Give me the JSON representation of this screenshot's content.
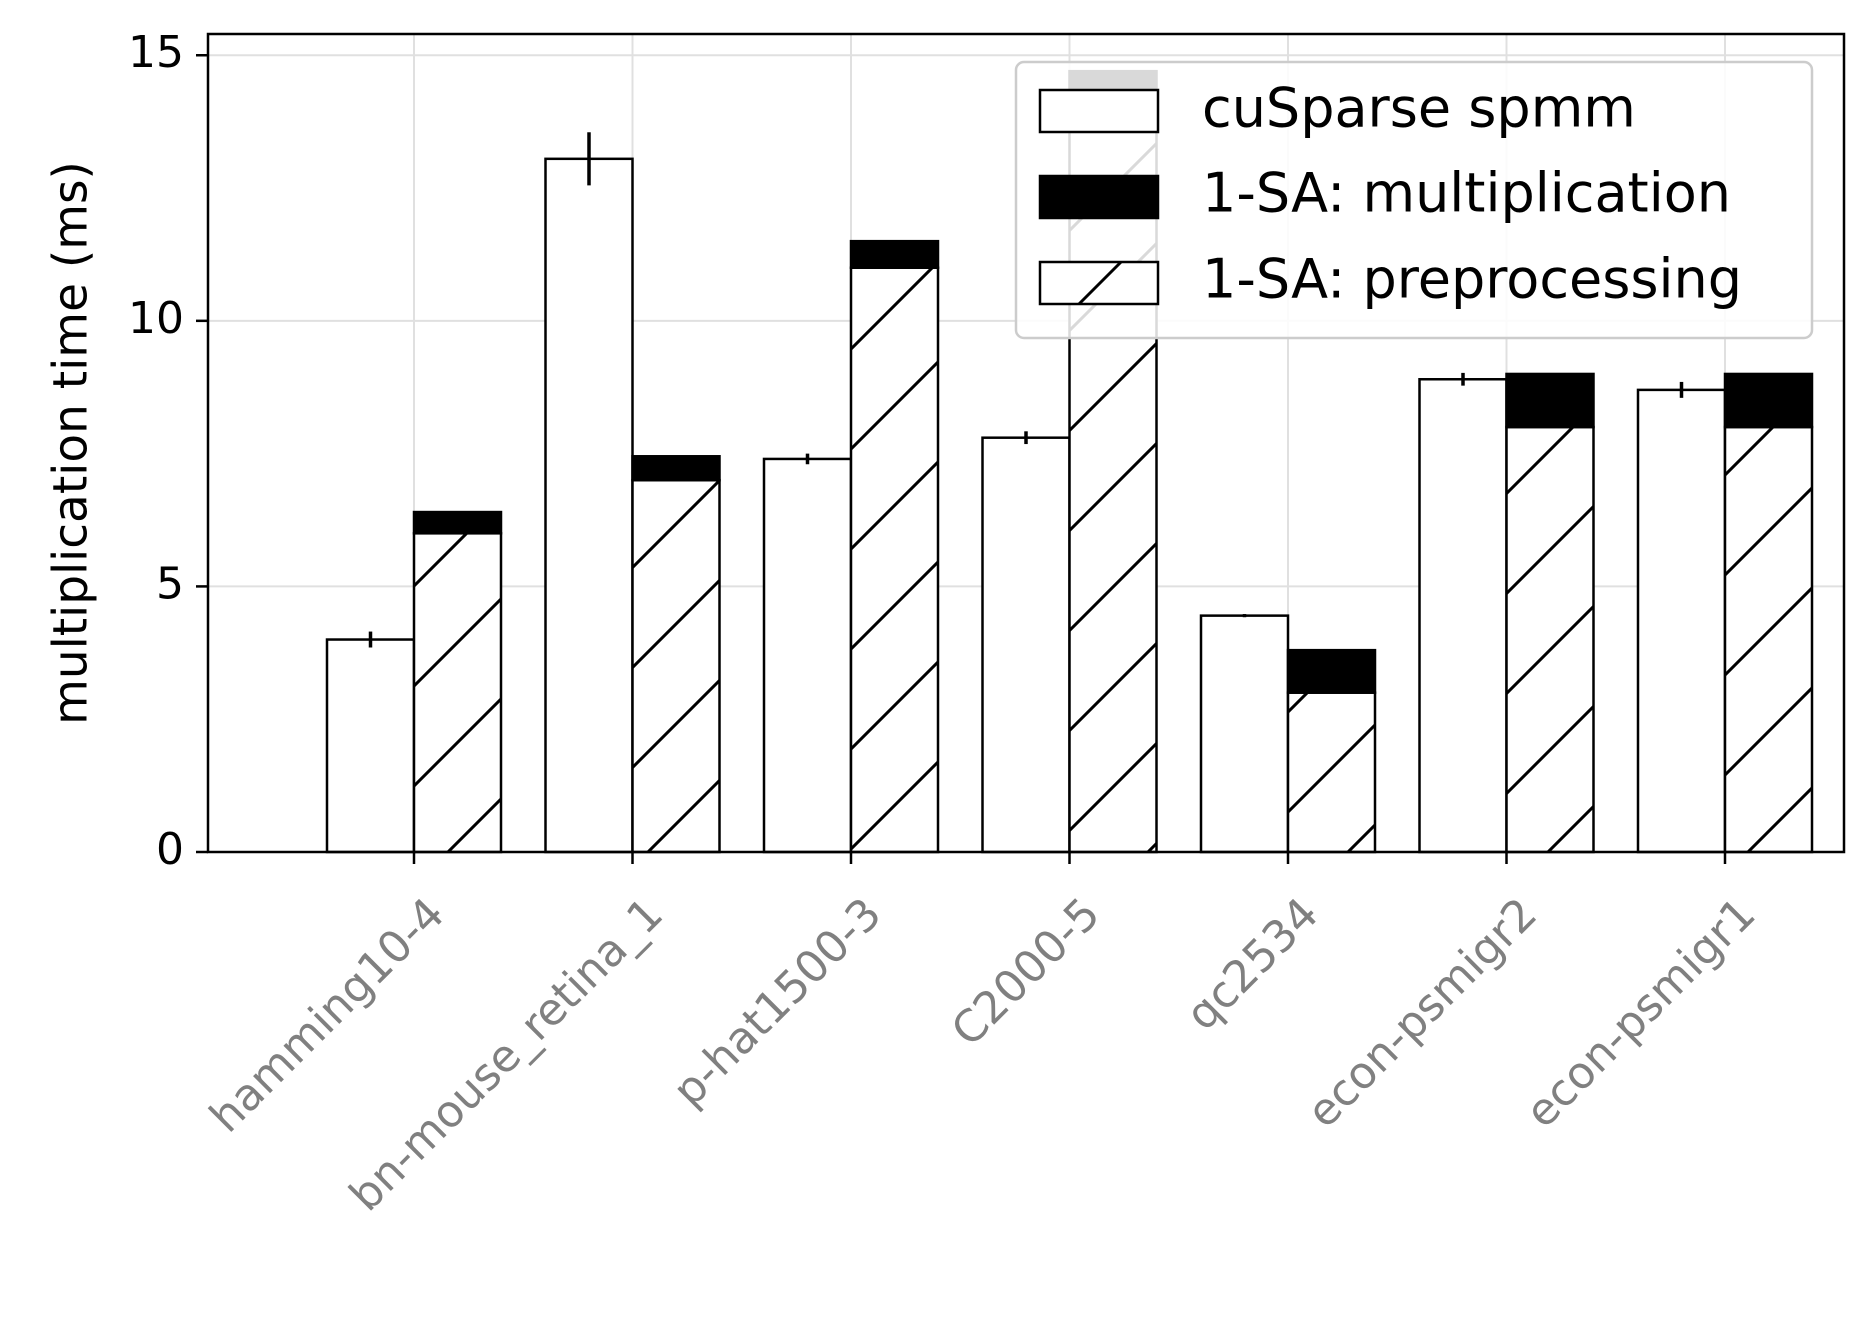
{
  "chart_data": {
    "type": "bar",
    "ylabel": "multiplication time (ms)",
    "xlabel": "",
    "ylim": [
      0,
      15.4
    ],
    "yticks": [
      0,
      5,
      10,
      15
    ],
    "grid": true,
    "legend_position": "top-right",
    "categories": [
      "hamming10-4",
      "bn-mouse_retina_1",
      "p-hat1500-3",
      "C2000-5",
      "qc2534",
      "econ-psmigr2",
      "econ-psmigr1"
    ],
    "series": [
      {
        "name": "cuSparse spmm",
        "fill": "white",
        "values": [
          4.0,
          13.05,
          7.4,
          7.8,
          4.45,
          8.9,
          8.7
        ],
        "error": [
          0.15,
          0.5,
          0.1,
          0.12,
          0.03,
          0.12,
          0.15
        ]
      },
      {
        "name": "1-SA: preprocessing",
        "fill": "hatch",
        "stack": "1-SA",
        "values": [
          6.0,
          7.0,
          11.0,
          14.0,
          3.0,
          8.0,
          8.0
        ]
      },
      {
        "name": "1-SA: multiplication",
        "fill": "black",
        "stack": "1-SA",
        "values": [
          0.4,
          0.45,
          0.5,
          0.7,
          0.8,
          1.0,
          1.0
        ]
      }
    ],
    "legend": [
      "cuSparse spmm",
      "1-SA: multiplication",
      "1-SA: preprocessing"
    ],
    "colors": {
      "bar_edge": "#000000",
      "grid": "#e0e0e0",
      "tick_label": "#808080"
    }
  }
}
